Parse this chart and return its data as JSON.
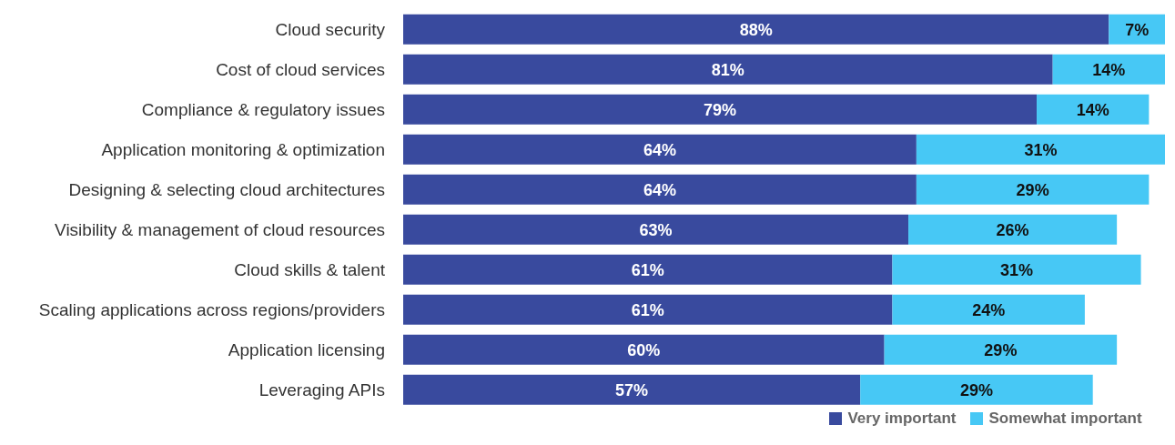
{
  "chart_data": {
    "type": "bar",
    "orientation": "horizontal",
    "stacked": true,
    "legend": "bottom",
    "grid": false,
    "tick_labels": "y",
    "categories": [
      "Cloud security",
      "Cost of cloud services",
      "Compliance & regulatory issues",
      "Application monitoring & optimization",
      "Designing & selecting cloud architectures",
      "Visibility & management of cloud resources",
      "Cloud skills & talent",
      "Scaling applications across regions/providers",
      "Application licensing",
      "Leveraging APIs"
    ],
    "series": [
      {
        "name": "Very important",
        "color": "#394a9e",
        "values": [
          88,
          81,
          79,
          64,
          64,
          63,
          61,
          61,
          60,
          57
        ],
        "value_labels": [
          "88%",
          "81%",
          "79%",
          "64%",
          "64%",
          "63%",
          "61%",
          "61%",
          "60%",
          "57%"
        ]
      },
      {
        "name": "Somewhat important",
        "color": "#47c8f5",
        "values": [
          7,
          14,
          14,
          31,
          29,
          26,
          31,
          24,
          29,
          29
        ],
        "value_labels": [
          "7%",
          "14%",
          "14%",
          "31%",
          "29%",
          "26%",
          "31%",
          "24%",
          "29%",
          "29%"
        ]
      }
    ]
  }
}
